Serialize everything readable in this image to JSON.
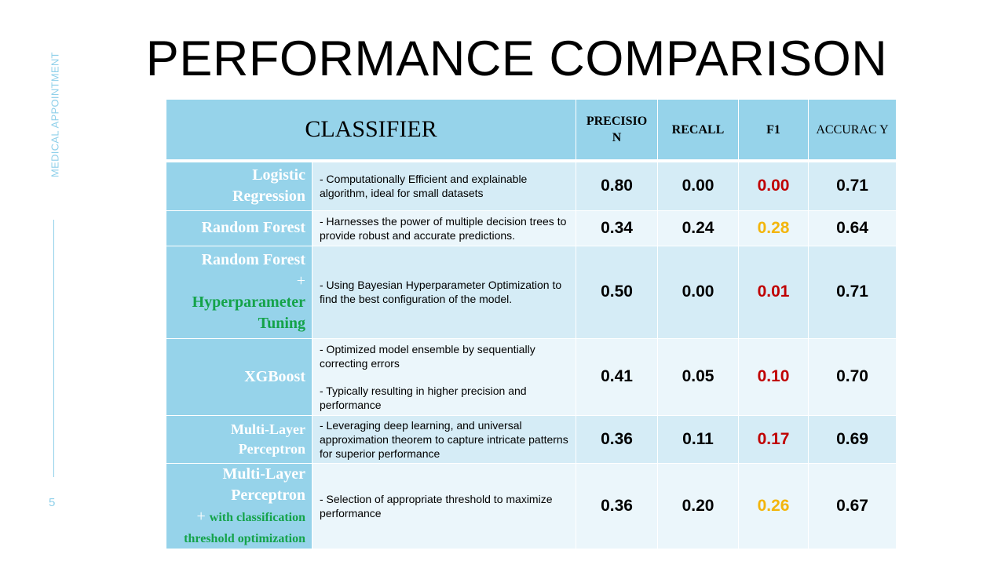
{
  "sidebar": {
    "label": "MEDICAL APPOINTMENT",
    "page_number": "5"
  },
  "title": "PERFORMANCE COMPARISON",
  "table": {
    "headers": {
      "classifier": "CLASSIFIER",
      "precision": "PRECISIO N",
      "recall": "RECALL",
      "f1": "F1",
      "accuracy": "ACCURAC Y"
    },
    "f1_colors": {
      "poor": "#c00000",
      "moderate": "#f3b50b"
    },
    "rows": [
      {
        "name_line1": "Logistic",
        "name_line2": "Regression",
        "desc": "- Computationally Efficient and explainable algorithm, ideal for small datasets",
        "precision": "0.80",
        "recall": "0.00",
        "f1": "0.00",
        "accuracy": "0.71"
      },
      {
        "name_line1": "Random Forest",
        "desc": "- Harnesses the power of multiple decision trees to provide robust and accurate predictions.",
        "precision": "0.34",
        "recall": "0.24",
        "f1": "0.28",
        "accuracy": "0.64"
      },
      {
        "name_line1": "Random Forest",
        "plus": "+",
        "green_line1": "Hyperparameter",
        "green_line2": "Tuning",
        "desc": "- Using Bayesian Hyperparameter Optimization to find the best configuration of the model.",
        "precision": "0.50",
        "recall": "0.00",
        "f1": "0.01",
        "accuracy": "0.71"
      },
      {
        "name_line1": "XGBoost",
        "desc1": "- Optimized model ensemble by sequentially correcting errors",
        "desc2": "- Typically resulting in higher precision and performance",
        "precision": "0.41",
        "recall": "0.05",
        "f1": "0.10",
        "accuracy": "0.70"
      },
      {
        "name_line1": "Multi-Layer",
        "name_line2": "Perceptron",
        "desc": "- Leveraging deep learning, and universal approximation theorem to capture intricate patterns for superior performance",
        "precision": "0.36",
        "recall": "0.11",
        "f1": "0.17",
        "accuracy": "0.69"
      },
      {
        "name_line1": "Multi-Layer",
        "name_line2": "Perceptron",
        "plus": "+",
        "green_line1": "with classification",
        "green_line2": "threshold optimization",
        "desc": "- Selection of appropriate threshold to maximize performance",
        "precision": "0.36",
        "recall": "0.20",
        "f1": "0.26",
        "accuracy": "0.67"
      }
    ]
  }
}
